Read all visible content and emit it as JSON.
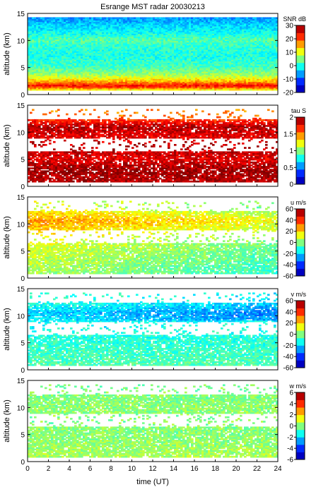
{
  "chart_data": {
    "type": "heatmap",
    "title": "Esrange MST radar 20030213",
    "xlabel": "time (UT)",
    "xlim": [
      0,
      24
    ],
    "xticks": [
      0,
      2,
      4,
      6,
      8,
      10,
      12,
      14,
      16,
      18,
      20,
      22,
      24
    ],
    "colormap": [
      "#00008f",
      "#0000ff",
      "#0080ff",
      "#00ffff",
      "#80ff80",
      "#ffff00",
      "#ff8000",
      "#ff0000",
      "#800000"
    ],
    "panels": [
      {
        "id": "snr",
        "ylabel": "altitude (km)",
        "ylim": [
          0,
          15
        ],
        "yticks": [
          0,
          5,
          10,
          15
        ],
        "colorbar_label": "SNR dB",
        "clim": [
          -20,
          30
        ],
        "cticks": [
          -20,
          -10,
          0,
          10,
          20,
          30
        ],
        "profile": [
          [
            0.5,
            6
          ],
          [
            1.5,
            24
          ],
          [
            2.5,
            14
          ],
          [
            3.5,
            7
          ],
          [
            5,
            2
          ],
          [
            7,
            0
          ],
          [
            9,
            1
          ],
          [
            10,
            3
          ],
          [
            11,
            0
          ],
          [
            13,
            -4
          ],
          [
            15,
            -8
          ]
        ]
      },
      {
        "id": "tau",
        "ylabel": "altitude (km)",
        "ylim": [
          0,
          15
        ],
        "yticks": [
          0,
          5,
          10,
          15
        ],
        "colorbar_label": "tau S",
        "clim": [
          0,
          2
        ],
        "cticks": [
          0,
          0.5,
          1,
          1.5,
          2
        ],
        "profile": [
          [
            1,
            1.9
          ],
          [
            3,
            1.95
          ],
          [
            5,
            1.8
          ],
          [
            7,
            1.9
          ],
          [
            9,
            1.8
          ],
          [
            11,
            1.9
          ],
          [
            13,
            1.5
          ]
        ]
      },
      {
        "id": "u",
        "ylabel": "altitude (km)",
        "ylim": [
          0,
          15
        ],
        "yticks": [
          0,
          5,
          10,
          15
        ],
        "colorbar_label": "u m/s",
        "clim": [
          -60,
          60
        ],
        "cticks": [
          -60,
          -40,
          -20,
          0,
          20,
          40,
          60
        ],
        "profile": [
          [
            1,
            5
          ],
          [
            3,
            8
          ],
          [
            5,
            10
          ],
          [
            7,
            14
          ],
          [
            9,
            22
          ],
          [
            10.5,
            28
          ],
          [
            12,
            20
          ],
          [
            13,
            12
          ]
        ]
      },
      {
        "id": "v",
        "ylabel": "altitude (km)",
        "ylim": [
          0,
          15
        ],
        "yticks": [
          0,
          5,
          10,
          15
        ],
        "colorbar_label": "v m/s",
        "clim": [
          -60,
          60
        ],
        "cticks": [
          -60,
          -40,
          -20,
          0,
          20,
          40,
          60
        ],
        "profile": [
          [
            1,
            -5
          ],
          [
            3,
            -8
          ],
          [
            5,
            -10
          ],
          [
            7,
            -12
          ],
          [
            9,
            -16
          ],
          [
            10.5,
            -20
          ],
          [
            12,
            -12
          ],
          [
            13,
            -8
          ]
        ]
      },
      {
        "id": "w",
        "ylabel": "altitude (km)",
        "ylim": [
          0,
          15
        ],
        "yticks": [
          0,
          5,
          10,
          15
        ],
        "colorbar_label": "w m/s",
        "clim": [
          -6,
          6
        ],
        "cticks": [
          -6,
          -4,
          -2,
          0,
          2,
          4,
          6
        ],
        "profile": [
          [
            1,
            0.5
          ],
          [
            3,
            0.3
          ],
          [
            5,
            0.1
          ],
          [
            7,
            0
          ],
          [
            9,
            0.2
          ],
          [
            11,
            0.1
          ],
          [
            13,
            0
          ]
        ]
      }
    ]
  }
}
